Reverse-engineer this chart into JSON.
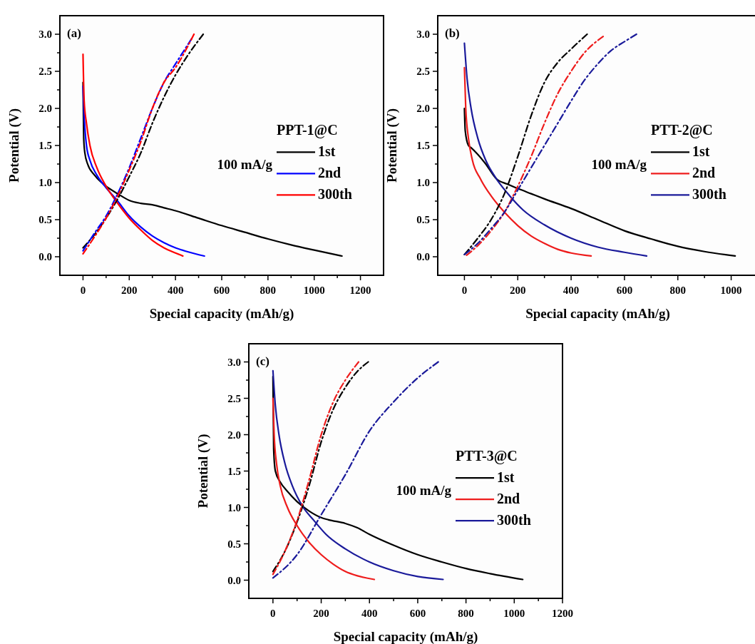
{
  "chart_data": [
    {
      "type": "line",
      "xlabel": "Special capacity (mAh/g)",
      "ylabel": "Potential (V)",
      "legend_title": "PPT-1@C",
      "legend": "right",
      "annotations": [
        "(a)",
        "100 mA/g"
      ],
      "xlim": [
        -100,
        1300
      ],
      "ylim": [
        -0.25,
        3.25
      ],
      "xticks": [
        0,
        {
          "value": 100,
          "label": null
        },
        200,
        {
          "value": 300,
          "label": null
        },
        400,
        {
          "value": 500,
          "label": null
        },
        600,
        {
          "value": 700,
          "label": null
        },
        800,
        {
          "value": 900,
          "label": null
        },
        1000,
        {
          "value": 1100,
          "label": null
        },
        1200
      ],
      "yticks": [
        {
          "value": 0,
          "label": "0.0"
        },
        {
          "value": 0.25,
          "label": null
        },
        0.5,
        {
          "value": 0.75,
          "label": null
        },
        {
          "value": 1,
          "label": "1.0"
        },
        {
          "value": 1.25,
          "label": null
        },
        1.5,
        {
          "value": 1.75,
          "label": null
        },
        {
          "value": 2,
          "label": "2.0"
        },
        {
          "value": 2.25,
          "label": null
        },
        2.5,
        {
          "value": 2.75,
          "label": null
        },
        {
          "value": 3,
          "label": "3.0"
        }
      ],
      "series": [
        {
          "name": "1st",
          "color": "#000000",
          "line_style": "solid",
          "x": [
            0,
            3,
            8,
            20,
            50,
            100,
            150,
            200,
            250,
            300,
            350,
            400,
            500,
            600,
            700,
            800,
            900,
            1000,
            1120
          ],
          "values": [
            2.35,
            1.6,
            1.4,
            1.25,
            1.1,
            0.95,
            0.85,
            0.76,
            0.72,
            0.7,
            0.66,
            0.62,
            0.52,
            0.42,
            0.33,
            0.24,
            0.16,
            0.09,
            0.01
          ]
        },
        {
          "name": "2nd",
          "color": "#0000ff",
          "line_style": "solid",
          "x": [
            0,
            5,
            15,
            30,
            60,
            100,
            150,
            200,
            250,
            300,
            350,
            400,
            450,
            525
          ],
          "values": [
            2.3,
            1.9,
            1.5,
            1.3,
            1.1,
            0.93,
            0.75,
            0.55,
            0.4,
            0.28,
            0.19,
            0.12,
            0.07,
            0.01
          ]
        },
        {
          "name": "300th",
          "color": "#ff0000",
          "line_style": "solid",
          "x": [
            0,
            5,
            15,
            30,
            60,
            100,
            150,
            200,
            250,
            300,
            350,
            400,
            432
          ],
          "values": [
            2.73,
            2.1,
            1.8,
            1.5,
            1.2,
            0.95,
            0.72,
            0.52,
            0.36,
            0.22,
            0.12,
            0.05,
            0.01
          ]
        },
        {
          "color": "#000000",
          "line_style": "dashed",
          "x": [
            0,
            50,
            100,
            150,
            200,
            250,
            300,
            350,
            400,
            450,
            520
          ],
          "values": [
            0.12,
            0.3,
            0.52,
            0.78,
            1.08,
            1.4,
            1.8,
            2.15,
            2.45,
            2.7,
            3.0
          ]
        },
        {
          "color": "#0000ff",
          "line_style": "dashed",
          "x": [
            0,
            50,
            100,
            150,
            200,
            250,
            300,
            350,
            400,
            470
          ],
          "values": [
            0.08,
            0.32,
            0.55,
            0.85,
            1.2,
            1.6,
            2.0,
            2.35,
            2.6,
            2.94
          ]
        },
        {
          "color": "#ff0000",
          "line_style": "dashed",
          "x": [
            0,
            50,
            100,
            150,
            200,
            250,
            300,
            350,
            400,
            480
          ],
          "values": [
            0.04,
            0.27,
            0.52,
            0.82,
            1.17,
            1.55,
            2.0,
            2.35,
            2.55,
            3.0
          ]
        }
      ]
    },
    {
      "type": "line",
      "xlabel": "Special capacity (mAh/g)",
      "ylabel": "Potential (V)",
      "legend_title": "PTT-2@C",
      "legend": "right",
      "annotations": [
        "(b)",
        "100 mA/g"
      ],
      "xlim": [
        -100,
        1100
      ],
      "ylim": [
        -0.25,
        3.25
      ],
      "xticks": [
        0,
        {
          "value": 100,
          "label": null
        },
        200,
        {
          "value": 300,
          "label": null
        },
        400,
        {
          "value": 500,
          "label": null
        },
        600,
        {
          "value": 700,
          "label": null
        },
        800,
        {
          "value": 900,
          "label": null
        },
        1000
      ],
      "yticks": [
        {
          "value": 0,
          "label": "0.0"
        },
        {
          "value": 0.25,
          "label": null
        },
        0.5,
        {
          "value": 0.75,
          "label": null
        },
        {
          "value": 1,
          "label": "1.0"
        },
        {
          "value": 1.25,
          "label": null
        },
        1.5,
        {
          "value": 1.75,
          "label": null
        },
        {
          "value": 2,
          "label": "2.0"
        },
        {
          "value": 2.25,
          "label": null
        },
        2.5,
        {
          "value": 2.75,
          "label": null
        },
        {
          "value": 3,
          "label": "3.0"
        }
      ],
      "series": [
        {
          "name": "1st",
          "color": "#000000",
          "line_style": "solid",
          "x": [
            0,
            3,
            15,
            25,
            50,
            80,
            120,
            160,
            200,
            250,
            300,
            400,
            500,
            600,
            700,
            800,
            900,
            1015
          ],
          "values": [
            2.0,
            1.7,
            1.5,
            1.47,
            1.38,
            1.25,
            1.05,
            0.98,
            0.92,
            0.85,
            0.78,
            0.65,
            0.5,
            0.35,
            0.24,
            0.14,
            0.07,
            0.01
          ]
        },
        {
          "name": "2nd",
          "color": "#ee1c1c",
          "line_style": "solid",
          "x": [
            0,
            5,
            15,
            30,
            60,
            100,
            150,
            200,
            250,
            300,
            350,
            400,
            475
          ],
          "values": [
            2.55,
            2.0,
            1.6,
            1.3,
            1.05,
            0.82,
            0.6,
            0.42,
            0.28,
            0.18,
            0.1,
            0.05,
            0.01
          ]
        },
        {
          "name": "300th",
          "color": "#1a1a9a",
          "line_style": "solid",
          "x": [
            0,
            10,
            25,
            50,
            80,
            120,
            170,
            220,
            300,
            400,
            500,
            600,
            683
          ],
          "values": [
            2.88,
            2.4,
            2.0,
            1.6,
            1.3,
            1.05,
            0.82,
            0.63,
            0.43,
            0.25,
            0.13,
            0.06,
            0.01
          ]
        },
        {
          "color": "#000000",
          "line_style": "dashed",
          "x": [
            0,
            50,
            100,
            150,
            200,
            250,
            300,
            350,
            400,
            460
          ],
          "values": [
            0.03,
            0.25,
            0.5,
            0.85,
            1.35,
            1.9,
            2.35,
            2.62,
            2.8,
            3.0
          ]
        },
        {
          "color": "#ee1c1c",
          "line_style": "dashed",
          "x": [
            8,
            50,
            100,
            150,
            200,
            250,
            300,
            350,
            400,
            450,
            520
          ],
          "values": [
            0.02,
            0.15,
            0.35,
            0.6,
            0.95,
            1.35,
            1.8,
            2.2,
            2.5,
            2.75,
            2.97
          ]
        },
        {
          "color": "#1a1a9a",
          "line_style": "dashed",
          "x": [
            0,
            50,
            100,
            150,
            200,
            300,
            350,
            400,
            450,
            500,
            550,
            600,
            645
          ],
          "values": [
            0.03,
            0.18,
            0.38,
            0.6,
            0.9,
            1.5,
            1.8,
            2.1,
            2.38,
            2.6,
            2.78,
            2.9,
            3.0
          ]
        }
      ]
    },
    {
      "type": "line",
      "xlabel": "Special capacity (mAh/g)",
      "ylabel": "Potential (V)",
      "legend_title": "PTT-3@C",
      "legend": "right",
      "annotations": [
        "(c)",
        "100 mA/g"
      ],
      "xlim": [
        -100,
        1200
      ],
      "ylim": [
        -0.25,
        3.25
      ],
      "xticks": [
        0,
        {
          "value": 100,
          "label": null
        },
        200,
        {
          "value": 300,
          "label": null
        },
        400,
        {
          "value": 500,
          "label": null
        },
        600,
        {
          "value": 700,
          "label": null
        },
        800,
        {
          "value": 900,
          "label": null
        },
        1000,
        {
          "value": 1100,
          "label": null
        },
        1200
      ],
      "yticks": [
        {
          "value": 0,
          "label": "0.0"
        },
        {
          "value": 0.25,
          "label": null
        },
        0.5,
        {
          "value": 0.75,
          "label": null
        },
        {
          "value": 1,
          "label": "1.0"
        },
        {
          "value": 1.25,
          "label": null
        },
        1.5,
        {
          "value": 1.75,
          "label": null
        },
        {
          "value": 2,
          "label": "2.0"
        },
        {
          "value": 2.25,
          "label": null
        },
        2.5,
        {
          "value": 2.75,
          "label": null
        },
        {
          "value": 3,
          "label": "3.0"
        }
      ],
      "series": [
        {
          "name": "1st",
          "color": "#000000",
          "line_style": "solid",
          "x": [
            0,
            3,
            10,
            30,
            60,
            100,
            150,
            200,
            230,
            300,
            350,
            400,
            500,
            600,
            700,
            800,
            900,
            1035
          ],
          "values": [
            2.8,
            1.8,
            1.5,
            1.35,
            1.22,
            1.08,
            0.95,
            0.86,
            0.83,
            0.78,
            0.72,
            0.63,
            0.48,
            0.35,
            0.25,
            0.16,
            0.09,
            0.01
          ]
        },
        {
          "name": "2nd",
          "color": "#ee1c1c",
          "line_style": "solid",
          "x": [
            0,
            5,
            15,
            30,
            60,
            100,
            150,
            200,
            250,
            300,
            350,
            420
          ],
          "values": [
            2.5,
            2.0,
            1.6,
            1.3,
            1.0,
            0.75,
            0.52,
            0.35,
            0.22,
            0.12,
            0.06,
            0.01
          ]
        },
        {
          "name": "300th",
          "color": "#1a1a9a",
          "line_style": "solid",
          "x": [
            0,
            10,
            25,
            50,
            80,
            120,
            170,
            220,
            300,
            400,
            500,
            600,
            705
          ],
          "values": [
            2.88,
            2.4,
            2.0,
            1.6,
            1.3,
            1.03,
            0.82,
            0.63,
            0.43,
            0.25,
            0.13,
            0.05,
            0.01
          ]
        },
        {
          "color": "#000000",
          "line_style": "dashed",
          "x": [
            0,
            50,
            100,
            150,
            200,
            250,
            300,
            350,
            395
          ],
          "values": [
            0.12,
            0.4,
            0.8,
            1.3,
            1.9,
            2.35,
            2.65,
            2.87,
            3.0
          ]
        },
        {
          "color": "#ee1c1c",
          "line_style": "dashed",
          "x": [
            0,
            50,
            100,
            150,
            200,
            250,
            300,
            355
          ],
          "values": [
            0.08,
            0.4,
            0.82,
            1.38,
            2.0,
            2.45,
            2.75,
            3.0
          ]
        },
        {
          "color": "#1a1a9a",
          "line_style": "dashed",
          "x": [
            0,
            100,
            200,
            300,
            400,
            500,
            600,
            685
          ],
          "values": [
            0.03,
            0.35,
            0.9,
            1.45,
            2.05,
            2.45,
            2.78,
            3.0
          ]
        }
      ]
    }
  ]
}
